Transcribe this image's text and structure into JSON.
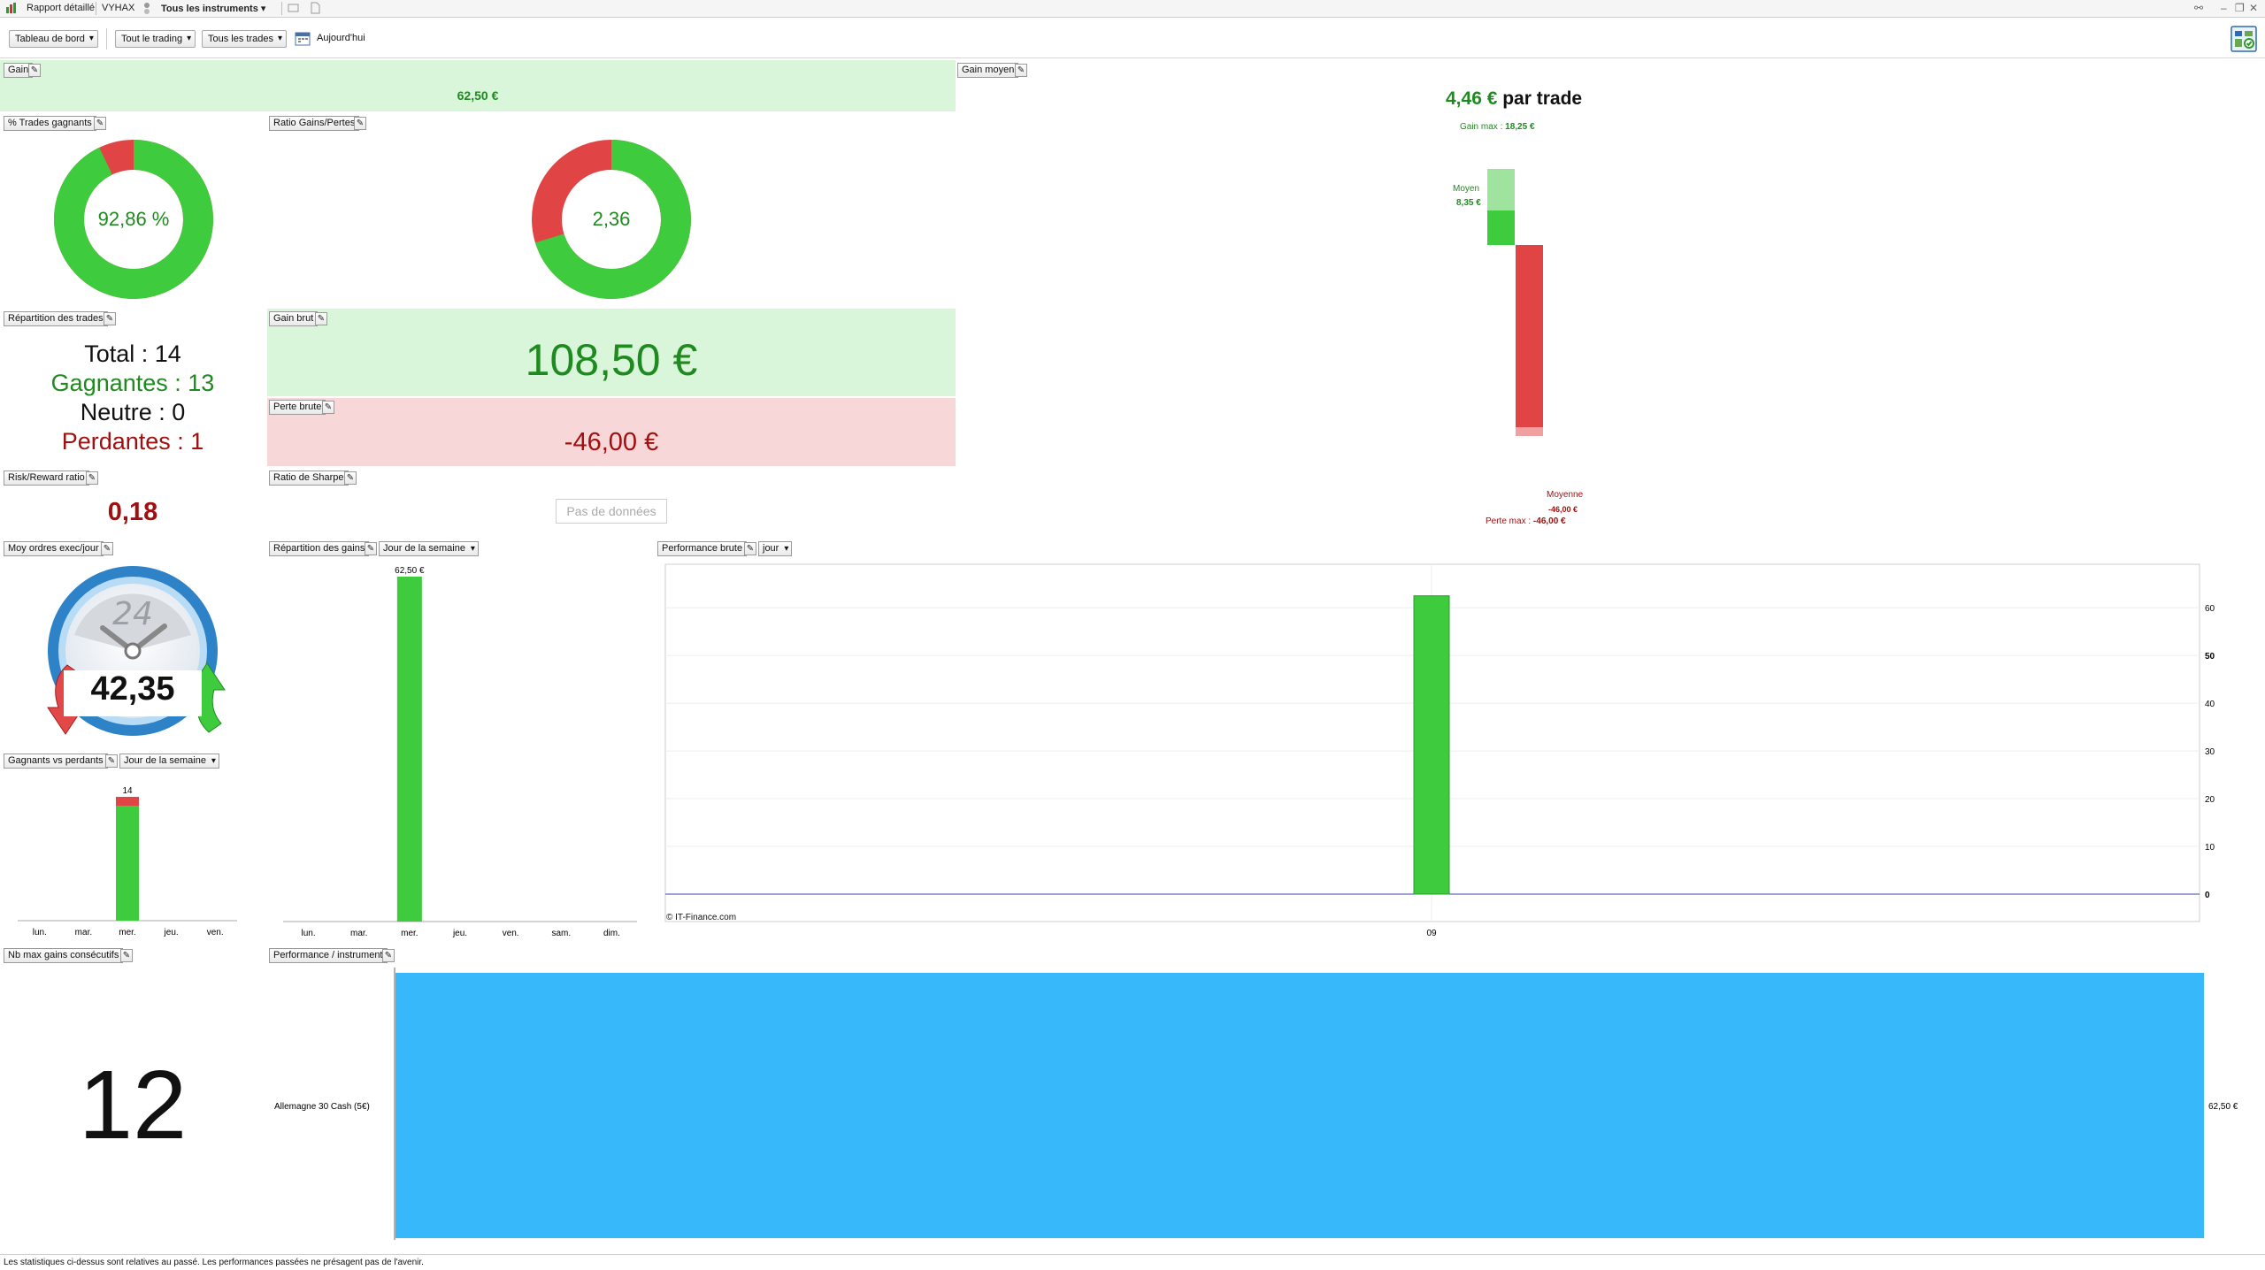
{
  "titlebar": {
    "tab_report": "Rapport détaillé",
    "tab_account": "VYHAX",
    "tab_instruments": "Tous les instruments"
  },
  "toolbar": {
    "dashboard": "Tableau de bord",
    "trading": "Tout le trading",
    "trades": "Tous les trades",
    "today": "Aujourd'hui"
  },
  "widgets": {
    "gain": {
      "label": "Gain",
      "value": "62,50 €"
    },
    "gain_moyen": {
      "label": "Gain moyen",
      "value": "4,46 €",
      "suffix": "par trade",
      "gain_max_label": "Gain max :",
      "gain_max_value": "18,25 €",
      "moyen_label": "Moyen",
      "moyen_value": "8,35 €",
      "moyenne_label": "Moyenne",
      "moyenne_value": "-46,00 €",
      "perte_max_label": "Perte max :",
      "perte_max_value": "-46,00 €",
      "gain_max": 18.25,
      "gain_avg": 8.35,
      "loss_avg": -46.0,
      "loss_max": -46.0
    },
    "pct_gagnants": {
      "label": "% Trades gagnants",
      "value": "92,86 %",
      "fraction": 0.9286
    },
    "ratio_gains_pertes": {
      "label": "Ratio Gains/Pertes",
      "value": "2,36",
      "gain_share": 0.7023
    },
    "repartition_trades": {
      "label": "Répartition des trades",
      "total": "Total : 14",
      "gagnantes": "Gagnantes : 13",
      "neutre": "Neutre : 0",
      "perdantes": "Perdantes : 1"
    },
    "gain_brut": {
      "label": "Gain brut",
      "value": "108,50 €"
    },
    "perte_brute": {
      "label": "Perte brute",
      "value": "-46,00 €"
    },
    "risk_reward": {
      "label": "Risk/Reward ratio",
      "value": "0,18"
    },
    "sharpe": {
      "label": "Ratio de Sharpe",
      "no_data": "Pas de données"
    },
    "moy_ordres": {
      "label": "Moy ordres exec/jour",
      "value": "42,35",
      "dial": "24"
    },
    "repartition_gains": {
      "label": "Répartition des gains",
      "period": "Jour de la semaine"
    },
    "performance_brute": {
      "label": "Performance brute",
      "period": "jour",
      "copyright": "© IT-Finance.com"
    },
    "gagnants_perdants": {
      "label": "Gagnants vs perdants",
      "period": "Jour de la semaine"
    },
    "nb_max_gains": {
      "label": "Nb max gains consécutifs",
      "value": "12"
    },
    "perf_instrument": {
      "label": "Performance / instrument"
    }
  },
  "chart_data": [
    {
      "id": "gagnants_vs_perdants",
      "type": "bar",
      "categories": [
        "lun.",
        "mar.",
        "mer.",
        "jeu.",
        "ven."
      ],
      "series": [
        {
          "values": [
            0,
            0,
            13,
            0,
            0
          ]
        },
        {
          "values": [
            0,
            0,
            1,
            0,
            0
          ]
        }
      ],
      "data_labels": [
        "",
        "",
        "14",
        "",
        ""
      ],
      "stacked": true,
      "colors": [
        "#3ecb3e",
        "#e04444"
      ]
    },
    {
      "id": "repartition_des_gains",
      "type": "bar",
      "categories": [
        "lun.",
        "mar.",
        "mer.",
        "jeu.",
        "ven.",
        "sam.",
        "dim."
      ],
      "values": [
        0,
        0,
        62.5,
        0,
        0,
        0,
        0
      ],
      "data_labels": [
        "",
        "",
        "62,50 €",
        "",
        "",
        "",
        ""
      ],
      "colors": [
        "#3ecb3e"
      ]
    },
    {
      "id": "performance_brute",
      "type": "bar",
      "categories": [
        "09"
      ],
      "values": [
        62.5
      ],
      "ylim": [
        0,
        68
      ],
      "yticks": [
        0,
        10,
        20,
        30,
        40,
        50,
        60
      ],
      "ytick_labels": [
        "0",
        "10",
        "20",
        "30",
        "40",
        "50",
        "60"
      ],
      "grid": true,
      "colors": [
        "#3ecb3e"
      ]
    },
    {
      "id": "performance_instrument",
      "type": "bar",
      "orientation": "horizontal",
      "categories": [
        "Allemagne 30 Cash (5€)"
      ],
      "values": [
        62.5
      ],
      "data_labels": [
        "62,50 €"
      ],
      "colors": [
        "#36b8fb"
      ]
    }
  ],
  "footer": {
    "disclaimer": "Les statistiques ci-dessus sont relatives au passé. Les performances passées ne présagent pas de l'avenir."
  }
}
